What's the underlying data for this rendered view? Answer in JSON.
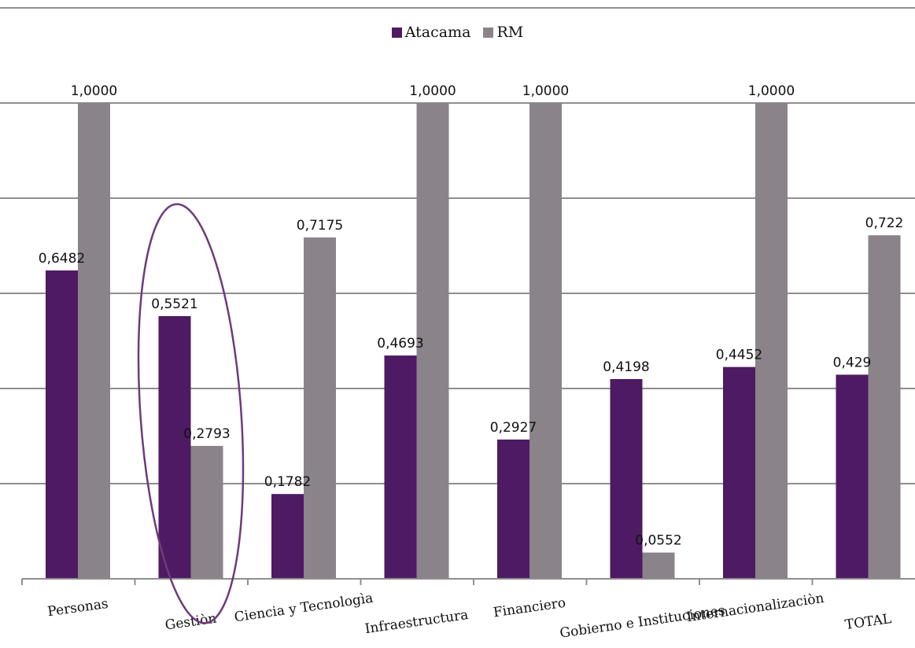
{
  "chart_data": {
    "type": "bar",
    "categories": [
      "Personas",
      "Gestiòn",
      "Ciencia y Tecnologìa",
      "Infraestructura",
      "Financiero",
      "Gobierno e Instituciones",
      "Internacionalizaciòn",
      "TOTAL"
    ],
    "series": [
      {
        "name": "Atacama",
        "values": [
          0.6482,
          0.5521,
          0.1782,
          0.4693,
          0.2927,
          0.4198,
          0.4452,
          0.429
        ],
        "labels": [
          "0,6482",
          "0,5521",
          "0,1782",
          "0,4693",
          "0,2927",
          "0,4198",
          "0,4452",
          "0,429"
        ]
      },
      {
        "name": "RM",
        "values": [
          1.0,
          0.2793,
          0.7175,
          1.0,
          1.0,
          0.0552,
          1.0,
          0.722
        ],
        "labels": [
          "1,0000",
          "0,2793",
          "0,7175",
          "1,0000",
          "1,0000",
          "0,0552",
          "1,0000",
          "0,722"
        ]
      }
    ],
    "colors": {
      "Atacama": "#4d1a63",
      "RM": "#8a8389"
    },
    "legend_position": "top-center",
    "grid": true,
    "ylim": [
      0,
      1.2
    ],
    "highlight": {
      "category": "Gestiòn",
      "shape": "ellipse",
      "color": "#6e3a7c"
    },
    "title": "",
    "xlabel": "",
    "ylabel": ""
  }
}
